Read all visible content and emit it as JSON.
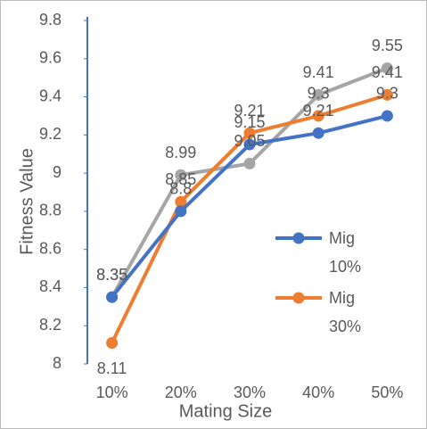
{
  "chart_data": {
    "type": "line",
    "x_label": "Mating Size",
    "y_label": "Fitness Value",
    "categories": [
      "10%",
      "20%",
      "30%",
      "40%",
      "50%"
    ],
    "series": [
      {
        "name": "Mig 10%",
        "color": "#4472c4",
        "values": [
          8.35,
          8.8,
          9.15,
          9.21,
          9.3
        ]
      },
      {
        "name": "Mig 30%",
        "color": "#ed7d31",
        "values": [
          8.11,
          8.85,
          9.21,
          9.3,
          9.41
        ]
      },
      {
        "color": "#a5a5a5",
        "values": [
          8.35,
          8.99,
          9.05,
          9.41,
          9.55
        ]
      }
    ],
    "ylim": [
      8,
      9.8
    ],
    "yticks": [
      8,
      8.2,
      8.4,
      8.6,
      8.8,
      9,
      9.2,
      9.4,
      9.6,
      9.8
    ],
    "data_labels": true
  }
}
